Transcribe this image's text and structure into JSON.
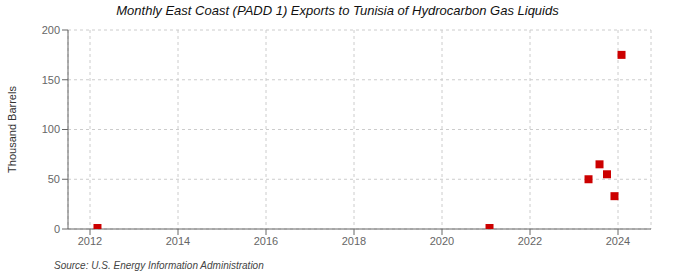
{
  "chart_data": {
    "type": "scatter",
    "title": "Monthly East Coast (PADD 1) Exports to Tunisia of Hydrocarbon Gas Liquids",
    "ylabel": "Thousand Barrels",
    "annotation": "Source: U.S. Energy Information Administration",
    "x": [
      2012.17,
      2021.08,
      2023.33,
      2023.58,
      2023.75,
      2023.92,
      2024.08
    ],
    "values": [
      1,
      1,
      50,
      65,
      55,
      33,
      175
    ],
    "color": "#cc0000",
    "marker": "square",
    "xlim": [
      2011.5,
      2024.75
    ],
    "ylim": [
      0,
      200
    ],
    "xticks": [
      2012,
      2014,
      2016,
      2018,
      2020,
      2022,
      2024
    ],
    "yticks": [
      0,
      50,
      100,
      150,
      200
    ],
    "grid": true
  }
}
